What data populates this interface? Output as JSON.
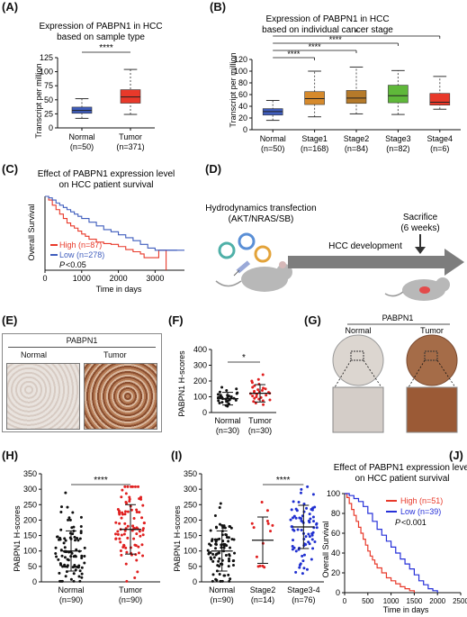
{
  "panels": {
    "A": {
      "label": "(A)",
      "title": [
        "Expression of PABPN1 in HCC",
        "based on sample type"
      ],
      "ylabel": "Transcript per million",
      "yticks": [
        "0",
        "25",
        "50",
        "75",
        "100",
        "125"
      ],
      "significance": "****",
      "groups": [
        {
          "name": "Normal",
          "n": "(n=50)",
          "color": "#3f5dbd"
        },
        {
          "name": "Tumor",
          "n": "(n=371)",
          "color": "#e8392a"
        }
      ]
    },
    "B": {
      "label": "(B)",
      "title": [
        "Expression of PABPN1 in HCC",
        "based on individual cancer stage"
      ],
      "ylabel": "Transcript per million",
      "yticks": [
        "0",
        "20",
        "40",
        "60",
        "80",
        "100",
        "120"
      ],
      "significance": [
        "****",
        "****",
        "****",
        "*"
      ],
      "groups": [
        {
          "name": "Normal",
          "n": "(n=50)",
          "color": "#3f5dbd"
        },
        {
          "name": "Stage1",
          "n": "(n=168)",
          "color": "#d68a2c"
        },
        {
          "name": "Stage2",
          "n": "(n=84)",
          "color": "#b57a2a"
        },
        {
          "name": "Stage3",
          "n": "(n=82)",
          "color": "#5fb83a"
        },
        {
          "name": "Stage4",
          "n": "(n=6)",
          "color": "#e8392a"
        }
      ]
    },
    "C": {
      "label": "(C)",
      "title": [
        "Effect of PABPN1 expression level",
        "on HCC patient survival"
      ],
      "ylabel": "Overall Survival",
      "xlabel": "Time in days",
      "xticks": [
        "0",
        "1000",
        "2000",
        "3000"
      ],
      "legend_high": "High (n=87)",
      "legend_low": "Low (n=278)",
      "pvalue": "<0.05",
      "p_italic": "P",
      "high_color": "#e8392a",
      "low_color": "#3f5dbd"
    },
    "D": {
      "label": "(D)",
      "title": [
        "Hydrodynamics transfection",
        "(AKT/NRAS/SB)"
      ],
      "sacrifice": [
        "Sacrifice",
        "(6 weeks)"
      ],
      "arrow_label": "HCC development"
    },
    "E": {
      "label": "(E)",
      "title": "PABPN1",
      "normal": "Normal",
      "tumor": "Tumor"
    },
    "F": {
      "label": "(F)",
      "ylabel": "PABPN1 H-scores",
      "yticks": [
        "0",
        "100",
        "200",
        "300",
        "400"
      ],
      "significance": "*",
      "groups": [
        {
          "name": "Normal",
          "n": "(n=30)"
        },
        {
          "name": "Tumor",
          "n": "(n=30)"
        }
      ]
    },
    "G": {
      "label": "(G)",
      "title": "PABPN1",
      "normal": "Normal",
      "tumor": "Tumor"
    },
    "H": {
      "label": "(H)",
      "ylabel": "PABPN1 H-scores",
      "yticks": [
        "0",
        "50",
        "100",
        "150",
        "200",
        "250",
        "300",
        "350"
      ],
      "significance": "****",
      "groups": [
        {
          "name": "Normal",
          "n": "(n=90)"
        },
        {
          "name": "Tumor",
          "n": "(n=90)"
        }
      ]
    },
    "I": {
      "label": "(I)",
      "ylabel": "PABPN1 H-scores",
      "yticks": [
        "0",
        "50",
        "100",
        "150",
        "200",
        "250",
        "300",
        "350"
      ],
      "significance": "****",
      "groups": [
        {
          "name": "Normal",
          "n": "(n=90)"
        },
        {
          "name": "Stage2",
          "n": "(n=14)"
        },
        {
          "name": "Stage3-4",
          "n": "(n=76)"
        }
      ]
    },
    "J": {
      "label": "(J)",
      "title": [
        "Effect of PABPN1 expression level",
        "on HCC patient survival"
      ],
      "ylabel": "Overall Survival",
      "xlabel": "Time in days",
      "yticks": [
        "0",
        "20",
        "40",
        "60",
        "80",
        "100"
      ],
      "xticks": [
        "0",
        "500",
        "1000",
        "1500",
        "2000",
        "2500"
      ],
      "legend_high": "High (n=51)",
      "legend_low": "Low (n=39)",
      "pvalue": "<0.001",
      "p_italic": "P",
      "high_color": "#e8392a",
      "low_color": "#2630d9"
    }
  },
  "chart_data": [
    {
      "panel": "A",
      "type": "box",
      "categories": [
        "Normal",
        "Tumor"
      ],
      "ylim": [
        0,
        125
      ],
      "boxes": [
        {
          "min": 17,
          "q1": 26,
          "median": 31,
          "q3": 37,
          "max": 52
        },
        {
          "min": 24,
          "q1": 44,
          "median": 55,
          "q3": 68,
          "max": 104
        }
      ]
    },
    {
      "panel": "B",
      "type": "box",
      "categories": [
        "Normal",
        "Stage1",
        "Stage2",
        "Stage3",
        "Stage4"
      ],
      "ylim": [
        0,
        120
      ],
      "boxes": [
        {
          "min": 16,
          "q1": 25,
          "median": 31,
          "q3": 36,
          "max": 50
        },
        {
          "min": 22,
          "q1": 43,
          "median": 53,
          "q3": 65,
          "max": 100
        },
        {
          "min": 27,
          "q1": 45,
          "median": 54,
          "q3": 67,
          "max": 107
        },
        {
          "min": 26,
          "q1": 46,
          "median": 58,
          "q3": 76,
          "max": 101
        },
        {
          "min": 35,
          "q1": 42,
          "median": 47,
          "q3": 62,
          "max": 91
        }
      ]
    },
    {
      "panel": "C",
      "type": "line",
      "xlim": [
        0,
        3800
      ],
      "series": [
        {
          "name": "High (n=87)",
          "x": [
            0,
            100,
            200,
            300,
            400,
            500,
            600,
            700,
            800,
            900,
            1000,
            1100,
            1200,
            1400,
            1600,
            1800,
            2000,
            2200,
            2400,
            2600,
            2700,
            3000,
            3100,
            3250,
            3300
          ],
          "y": [
            1.0,
            0.95,
            0.88,
            0.82,
            0.76,
            0.7,
            0.64,
            0.6,
            0.57,
            0.53,
            0.49,
            0.46,
            0.42,
            0.38,
            0.36,
            0.35,
            0.32,
            0.28,
            0.25,
            0.22,
            0.17,
            0.17,
            0.27,
            0.27,
            0.0
          ]
        },
        {
          "name": "Low (n=278)",
          "x": [
            0,
            100,
            200,
            300,
            400,
            500,
            600,
            700,
            800,
            900,
            1000,
            1200,
            1400,
            1600,
            1800,
            2000,
            2200,
            2400,
            2600,
            2800,
            3000,
            3200,
            3600
          ],
          "y": [
            1.0,
            0.98,
            0.95,
            0.91,
            0.88,
            0.85,
            0.82,
            0.79,
            0.76,
            0.73,
            0.7,
            0.65,
            0.6,
            0.55,
            0.52,
            0.48,
            0.44,
            0.4,
            0.35,
            0.3,
            0.27,
            0.27,
            0.27
          ]
        }
      ]
    },
    {
      "panel": "F",
      "type": "scatter",
      "categories": [
        "Normal",
        "Tumor"
      ],
      "ylim": [
        0,
        400
      ],
      "means": [
        88,
        122
      ],
      "sd": [
        40,
        55
      ],
      "points": [
        [
          40,
          55,
          60,
          65,
          70,
          72,
          75,
          78,
          80,
          85,
          88,
          90,
          92,
          95,
          95,
          98,
          100,
          100,
          105,
          110,
          110,
          115,
          120,
          125,
          130,
          140,
          150,
          160,
          45,
          52
        ],
        [
          50,
          60,
          70,
          80,
          85,
          90,
          95,
          100,
          105,
          110,
          115,
          118,
          120,
          122,
          125,
          128,
          130,
          135,
          140,
          145,
          150,
          155,
          160,
          170,
          180,
          190,
          200,
          210,
          240,
          75
        ]
      ]
    },
    {
      "panel": "H",
      "type": "scatter",
      "categories": [
        "Normal",
        "Tumor"
      ],
      "ylim": [
        0,
        350
      ],
      "means": [
        100,
        170
      ],
      "sd": [
        65,
        80
      ]
    },
    {
      "panel": "I",
      "type": "scatter",
      "categories": [
        "Normal",
        "Stage2",
        "Stage3-4"
      ],
      "ylim": [
        0,
        350
      ],
      "means": [
        100,
        135,
        178
      ],
      "sd": [
        65,
        75,
        70
      ]
    },
    {
      "panel": "J",
      "type": "line",
      "xlim": [
        0,
        2500
      ],
      "ylim": [
        0,
        100
      ],
      "series": [
        {
          "name": "High (n=51)",
          "x": [
            0,
            50,
            100,
            150,
            200,
            250,
            300,
            350,
            400,
            450,
            500,
            550,
            600,
            650,
            700,
            800,
            900,
            1000,
            1100,
            1200,
            1300,
            1400,
            1500
          ],
          "y": [
            100,
            96,
            90,
            84,
            78,
            72,
            66,
            60,
            54,
            48,
            42,
            37,
            33,
            29,
            25,
            20,
            15,
            12,
            9,
            6,
            4,
            2,
            0
          ]
        },
        {
          "name": "Low (n=39)",
          "x": [
            0,
            100,
            200,
            300,
            400,
            500,
            600,
            700,
            800,
            900,
            1000,
            1100,
            1200,
            1300,
            1400,
            1500,
            1600,
            1700,
            1800,
            1900,
            2000
          ],
          "y": [
            100,
            98,
            95,
            92,
            87,
            80,
            72,
            64,
            58,
            52,
            46,
            40,
            34,
            29,
            24,
            18,
            12,
            8,
            4,
            2,
            0
          ]
        }
      ]
    }
  ]
}
